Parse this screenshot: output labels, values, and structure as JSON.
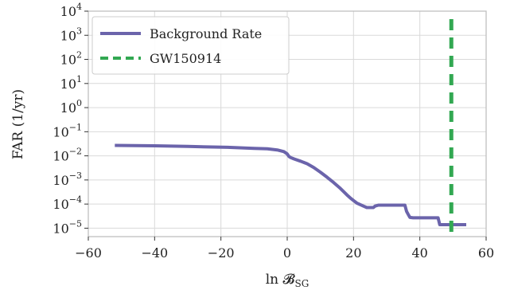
{
  "chart_data": {
    "type": "line",
    "xlabel": "ln 𝓑",
    "xlabel_sub": "SG",
    "ylabel": "FAR (1/yr)",
    "xlim": [
      -60,
      60
    ],
    "ylim_log10": [
      -5.35,
      4
    ],
    "y_scale": "log",
    "grid": true,
    "legend_position": "upper-left",
    "x_ticks": [
      -60,
      -40,
      -20,
      0,
      20,
      40,
      60
    ],
    "x_tick_labels": [
      "−60",
      "−40",
      "−20",
      "0",
      "20",
      "40",
      "60"
    ],
    "y_tick_exponents": [
      4,
      3,
      2,
      1,
      0,
      -1,
      -2,
      -3,
      -4,
      -5
    ],
    "y_tick_base": "10",
    "y_tick_exponent_labels": [
      "4",
      "3",
      "2",
      "1",
      "0",
      "−1",
      "−2",
      "−3",
      "−4",
      "−5"
    ],
    "series": [
      {
        "name": "Background Rate",
        "color": "#6b64ab",
        "style": "solid",
        "x": [
          -52,
          -40,
          -30,
          -18,
          -10,
          -6,
          -3,
          -1,
          0,
          0.5,
          1,
          2,
          4,
          6,
          8,
          10,
          12,
          14,
          16,
          17,
          18,
          19,
          20,
          21,
          22,
          23,
          24,
          25,
          26,
          26.5,
          27.5,
          28,
          29,
          30,
          31,
          32,
          33,
          34,
          35,
          35.5,
          36,
          36.5,
          37,
          38,
          40,
          42,
          44,
          45,
          45.5,
          46,
          48,
          50,
          52,
          54
        ],
        "y": [
          0.027,
          0.026,
          0.0245,
          0.0225,
          0.0205,
          0.0195,
          0.0175,
          0.015,
          0.012,
          0.0095,
          0.0085,
          0.0075,
          0.006,
          0.0047,
          0.0033,
          0.0021,
          0.0013,
          0.00078,
          0.00045,
          0.00033,
          0.00024,
          0.00018,
          0.00014,
          0.00011,
          9.5e-05,
          8.2e-05,
          7.2e-05,
          7.2e-05,
          7.2e-05,
          8.2e-05,
          9e-05,
          9e-05,
          9e-05,
          9e-05,
          9e-05,
          9e-05,
          9e-05,
          9e-05,
          9e-05,
          9e-05,
          5e-05,
          3.7e-05,
          2.8e-05,
          2.7e-05,
          2.7e-05,
          2.7e-05,
          2.7e-05,
          2.7e-05,
          2.7e-05,
          1.4e-05,
          1.4e-05,
          1.4e-05,
          1.4e-05,
          1.4e-05
        ]
      },
      {
        "name": "GW150914",
        "color": "#32a852",
        "style": "dashed",
        "vertical_x": 49.5
      }
    ]
  }
}
